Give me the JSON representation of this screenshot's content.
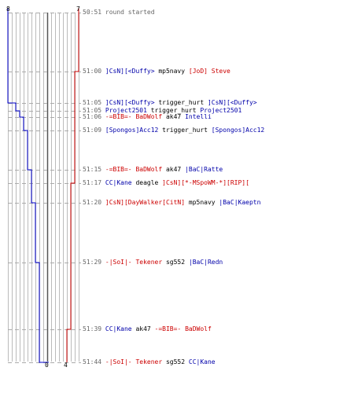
{
  "colors": {
    "team_blue": "#0000cc",
    "team_red": "#cc0000",
    "grid": "#bbbbbb",
    "dashes": "#aaaaaa",
    "center_line": "#555555"
  },
  "start_counts": {
    "blue": "8",
    "red": "7"
  },
  "end_counts": {
    "blue": "0",
    "red": "4"
  },
  "events": [
    {
      "time": "50:51",
      "parts": [
        {
          "text": "round started",
          "color": "time"
        }
      ]
    },
    {
      "time": "51:00",
      "parts": [
        {
          "text": "]CsN][<Duffy>",
          "color": "blue"
        },
        {
          "text": " mp5navy ",
          "color": "plain"
        },
        {
          "text": "[JoD] Steve",
          "color": "red"
        }
      ]
    },
    {
      "time": "51:05",
      "parts": [
        {
          "text": "]CsN][<Duffy>",
          "color": "blue"
        },
        {
          "text": " trigger_hurt ",
          "color": "plain"
        },
        {
          "text": "]CsN][<Duffy>",
          "color": "blue"
        }
      ]
    },
    {
      "time": "51:05",
      "parts": [
        {
          "text": "Project2501",
          "color": "blue"
        },
        {
          "text": " trigger_hurt ",
          "color": "plain"
        },
        {
          "text": "Project2501",
          "color": "blue"
        }
      ]
    },
    {
      "time": "51:06",
      "parts": [
        {
          "text": "-=BIB=- BaDWolf",
          "color": "red"
        },
        {
          "text": " ak47 ",
          "color": "plain"
        },
        {
          "text": "Intelli",
          "color": "blue"
        }
      ]
    },
    {
      "time": "51:09",
      "parts": [
        {
          "text": "[Spongos]Acc12",
          "color": "blue"
        },
        {
          "text": " trigger_hurt ",
          "color": "plain"
        },
        {
          "text": "[Spongos]Acc12",
          "color": "blue"
        }
      ]
    },
    {
      "time": "51:15",
      "parts": [
        {
          "text": "-=BIB=- BaDWolf",
          "color": "red"
        },
        {
          "text": " ak47 ",
          "color": "plain"
        },
        {
          "text": "|BaC|Ratte",
          "color": "blue"
        }
      ]
    },
    {
      "time": "51:17",
      "parts": [
        {
          "text": "CC|Kane",
          "color": "blue"
        },
        {
          "text": " deagle ",
          "color": "plain"
        },
        {
          "text": "]CsN][*-MSpoWM-*][RIP][",
          "color": "red"
        }
      ]
    },
    {
      "time": "51:20",
      "parts": [
        {
          "text": "]CsN][DayWalker[CitN]",
          "color": "red"
        },
        {
          "text": " mp5navy ",
          "color": "plain"
        },
        {
          "text": "|BaC|Kaeptn",
          "color": "blue"
        }
      ]
    },
    {
      "time": "51:29",
      "parts": [
        {
          "text": "-|SoI|- Tekener",
          "color": "red"
        },
        {
          "text": " sg552 ",
          "color": "plain"
        },
        {
          "text": "|BaC|Redn",
          "color": "blue"
        }
      ]
    },
    {
      "time": "51:39",
      "parts": [
        {
          "text": "CC|Kane",
          "color": "blue"
        },
        {
          "text": " ak47 ",
          "color": "plain"
        },
        {
          "text": "-=BIB=- BaDWolf",
          "color": "red"
        }
      ]
    },
    {
      "time": "51:44",
      "parts": [
        {
          "text": "-|SoI|- Tekener",
          "color": "red"
        },
        {
          "text": " sg552 ",
          "color": "plain"
        },
        {
          "text": "CC|Kane",
          "color": "blue"
        }
      ]
    }
  ]
}
